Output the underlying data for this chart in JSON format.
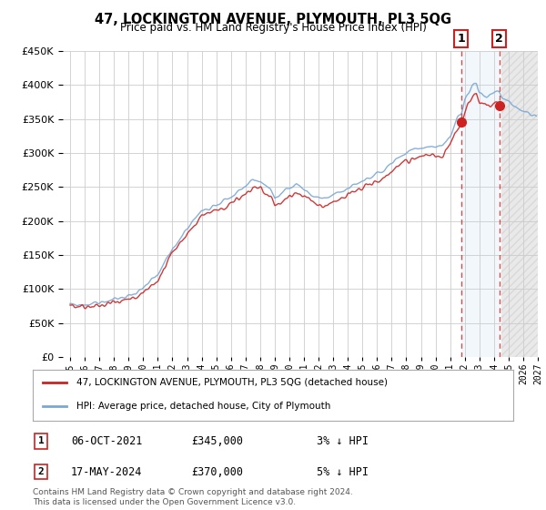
{
  "title": "47, LOCKINGTON AVENUE, PLYMOUTH, PL3 5QG",
  "subtitle": "Price paid vs. HM Land Registry's House Price Index (HPI)",
  "ylim": [
    0,
    450000
  ],
  "yticks": [
    0,
    50000,
    100000,
    150000,
    200000,
    250000,
    300000,
    350000,
    400000,
    450000
  ],
  "hpi_color": "#7aa8d4",
  "price_color": "#cc2222",
  "sale1_x": 2021.76,
  "sale1_y": 345000,
  "sale2_x": 2024.37,
  "sale2_y": 370000,
  "sale1_date": "06-OCT-2021",
  "sale1_price": "£345,000",
  "sale1_pct": "3% ↓ HPI",
  "sale2_date": "17-MAY-2024",
  "sale2_price": "£370,000",
  "sale2_pct": "5% ↓ HPI",
  "legend_line1": "47, LOCKINGTON AVENUE, PLYMOUTH, PL3 5QG (detached house)",
  "legend_line2": "HPI: Average price, detached house, City of Plymouth",
  "footnote": "Contains HM Land Registry data © Crown copyright and database right 2024.\nThis data is licensed under the Open Government Licence v3.0.",
  "xmin": 1995,
  "xmax": 2027,
  "shaded_start": 2021.76,
  "shaded_end": 2024.37,
  "hatch_start": 2024.5,
  "hatch_end": 2027,
  "background_color": "#ffffff",
  "grid_color": "#cccccc"
}
